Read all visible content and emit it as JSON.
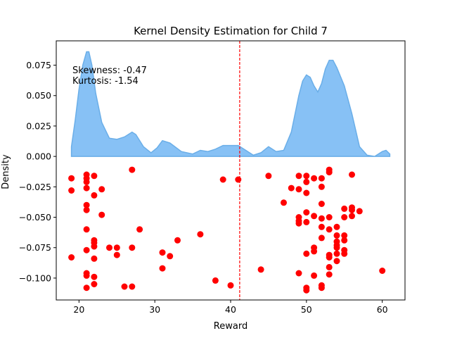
{
  "chart_data": {
    "type": "scatter",
    "title": "Kernel Density Estimation for Child 7",
    "xlabel": "Reward",
    "ylabel": "Density",
    "xlim": [
      17,
      63
    ],
    "ylim": [
      -0.118,
      0.095
    ],
    "xticks": [
      20,
      30,
      40,
      50,
      60
    ],
    "yticks": [
      {
        "value": 0.075,
        "label": "0.075"
      },
      {
        "value": 0.05,
        "label": "0.050"
      },
      {
        "value": 0.025,
        "label": "0.025"
      },
      {
        "value": 0.0,
        "label": "0.000"
      },
      {
        "value": -0.025,
        "label": "−0.025"
      },
      {
        "value": -0.05,
        "label": "−0.050"
      },
      {
        "value": -0.075,
        "label": "−0.075"
      },
      {
        "value": -0.1,
        "label": "−0.100"
      }
    ],
    "grid": false,
    "annotations": {
      "skewness": "Skewness: -0.47",
      "kurtosis": "Kurtosis: -1.54"
    },
    "mean_line": {
      "x": 41.2,
      "color": "#ff0000"
    },
    "kde": {
      "fill_color": "#87c1f5",
      "edge_color": "#6aaee8",
      "points": [
        [
          19,
          0.008
        ],
        [
          19.5,
          0.03
        ],
        [
          20.0,
          0.055
        ],
        [
          20.5,
          0.075
        ],
        [
          21.0,
          0.086
        ],
        [
          21.3,
          0.086
        ],
        [
          21.7,
          0.075
        ],
        [
          22.2,
          0.052
        ],
        [
          23.0,
          0.028
        ],
        [
          24.0,
          0.015
        ],
        [
          25.0,
          0.014
        ],
        [
          26.0,
          0.016
        ],
        [
          27.0,
          0.02
        ],
        [
          27.5,
          0.018
        ],
        [
          28.5,
          0.008
        ],
        [
          29.5,
          0.003
        ],
        [
          30.3,
          0.007
        ],
        [
          31.0,
          0.013
        ],
        [
          32.0,
          0.011
        ],
        [
          33.5,
          0.004
        ],
        [
          35.0,
          0.002
        ],
        [
          36.0,
          0.005
        ],
        [
          37.0,
          0.004
        ],
        [
          38.0,
          0.006
        ],
        [
          39.0,
          0.009
        ],
        [
          40.0,
          0.009
        ],
        [
          41.0,
          0.009
        ],
        [
          42.0,
          0.005
        ],
        [
          43.0,
          0.001
        ],
        [
          44.0,
          0.003
        ],
        [
          45.0,
          0.008
        ],
        [
          46.0,
          0.004
        ],
        [
          47.0,
          0.005
        ],
        [
          48.0,
          0.02
        ],
        [
          49.0,
          0.05
        ],
        [
          49.5,
          0.062
        ],
        [
          50.0,
          0.067
        ],
        [
          50.5,
          0.065
        ],
        [
          51.0,
          0.058
        ],
        [
          51.5,
          0.053
        ],
        [
          52.0,
          0.06
        ],
        [
          52.5,
          0.072
        ],
        [
          53.0,
          0.079
        ],
        [
          53.5,
          0.079
        ],
        [
          54.0,
          0.073
        ],
        [
          55.0,
          0.058
        ],
        [
          56.0,
          0.035
        ],
        [
          57.0,
          0.008
        ],
        [
          58.0,
          0.001
        ],
        [
          59.0,
          0.0
        ],
        [
          60.0,
          0.004
        ],
        [
          60.5,
          0.005
        ],
        [
          61.0,
          0.002
        ]
      ]
    },
    "scatter": {
      "color": "#ff0000",
      "points": [
        [
          19,
          -0.018
        ],
        [
          19,
          -0.028
        ],
        [
          19,
          -0.083
        ],
        [
          21,
          -0.015
        ],
        [
          21,
          -0.018
        ],
        [
          21,
          -0.021
        ],
        [
          21,
          -0.026
        ],
        [
          21,
          -0.04
        ],
        [
          21,
          -0.044
        ],
        [
          21,
          -0.06
        ],
        [
          21,
          -0.077
        ],
        [
          21,
          -0.096
        ],
        [
          21,
          -0.098
        ],
        [
          21,
          -0.108
        ],
        [
          22,
          -0.016
        ],
        [
          22,
          -0.032
        ],
        [
          22,
          -0.069
        ],
        [
          22,
          -0.071
        ],
        [
          22,
          -0.074
        ],
        [
          22,
          -0.084
        ],
        [
          22,
          -0.099
        ],
        [
          22,
          -0.105
        ],
        [
          23,
          -0.027
        ],
        [
          23,
          -0.048
        ],
        [
          24,
          -0.075
        ],
        [
          25,
          -0.075
        ],
        [
          25,
          -0.081
        ],
        [
          26,
          -0.107
        ],
        [
          27,
          -0.011
        ],
        [
          27,
          -0.075
        ],
        [
          27,
          -0.107
        ],
        [
          28,
          -0.06
        ],
        [
          31,
          -0.079
        ],
        [
          31,
          -0.092
        ],
        [
          32,
          -0.082
        ],
        [
          33,
          -0.069
        ],
        [
          36,
          -0.064
        ],
        [
          38,
          -0.102
        ],
        [
          39,
          -0.019
        ],
        [
          40,
          -0.106
        ],
        [
          41,
          -0.019
        ],
        [
          44,
          -0.093
        ],
        [
          45,
          -0.016
        ],
        [
          47,
          -0.038
        ],
        [
          48,
          -0.026
        ],
        [
          49,
          -0.016
        ],
        [
          49,
          -0.027
        ],
        [
          49,
          -0.05
        ],
        [
          49,
          -0.053
        ],
        [
          49,
          -0.055
        ],
        [
          49,
          -0.096
        ],
        [
          50,
          -0.016
        ],
        [
          50,
          -0.021
        ],
        [
          50,
          -0.03
        ],
        [
          50,
          -0.046
        ],
        [
          50,
          -0.054
        ],
        [
          50,
          -0.08
        ],
        [
          50,
          -0.108
        ],
        [
          50,
          -0.11
        ],
        [
          51,
          -0.018
        ],
        [
          51,
          -0.049
        ],
        [
          51,
          -0.075
        ],
        [
          51,
          -0.078
        ],
        [
          51,
          -0.098
        ],
        [
          52,
          -0.018
        ],
        [
          52,
          -0.025
        ],
        [
          52,
          -0.039
        ],
        [
          52,
          -0.051
        ],
        [
          52,
          -0.058
        ],
        [
          52,
          -0.067
        ],
        [
          52,
          -0.106
        ],
        [
          52,
          -0.108
        ],
        [
          53,
          -0.011
        ],
        [
          53,
          -0.013
        ],
        [
          53,
          -0.05
        ],
        [
          53,
          -0.06
        ],
        [
          53,
          -0.081
        ],
        [
          53,
          -0.083
        ],
        [
          53,
          -0.091
        ],
        [
          53,
          -0.097
        ],
        [
          54,
          -0.058
        ],
        [
          54,
          -0.065
        ],
        [
          54,
          -0.07
        ],
        [
          54,
          -0.073
        ],
        [
          54,
          -0.075
        ],
        [
          54,
          -0.08
        ],
        [
          54,
          -0.086
        ],
        [
          55,
          -0.043
        ],
        [
          55,
          -0.05
        ],
        [
          55,
          -0.065
        ],
        [
          55,
          -0.069
        ],
        [
          55,
          -0.077
        ],
        [
          55,
          -0.08
        ],
        [
          56,
          -0.015
        ],
        [
          56,
          -0.042
        ],
        [
          56,
          -0.044
        ],
        [
          56,
          -0.049
        ],
        [
          57,
          -0.045
        ],
        [
          60,
          -0.094
        ]
      ]
    }
  }
}
